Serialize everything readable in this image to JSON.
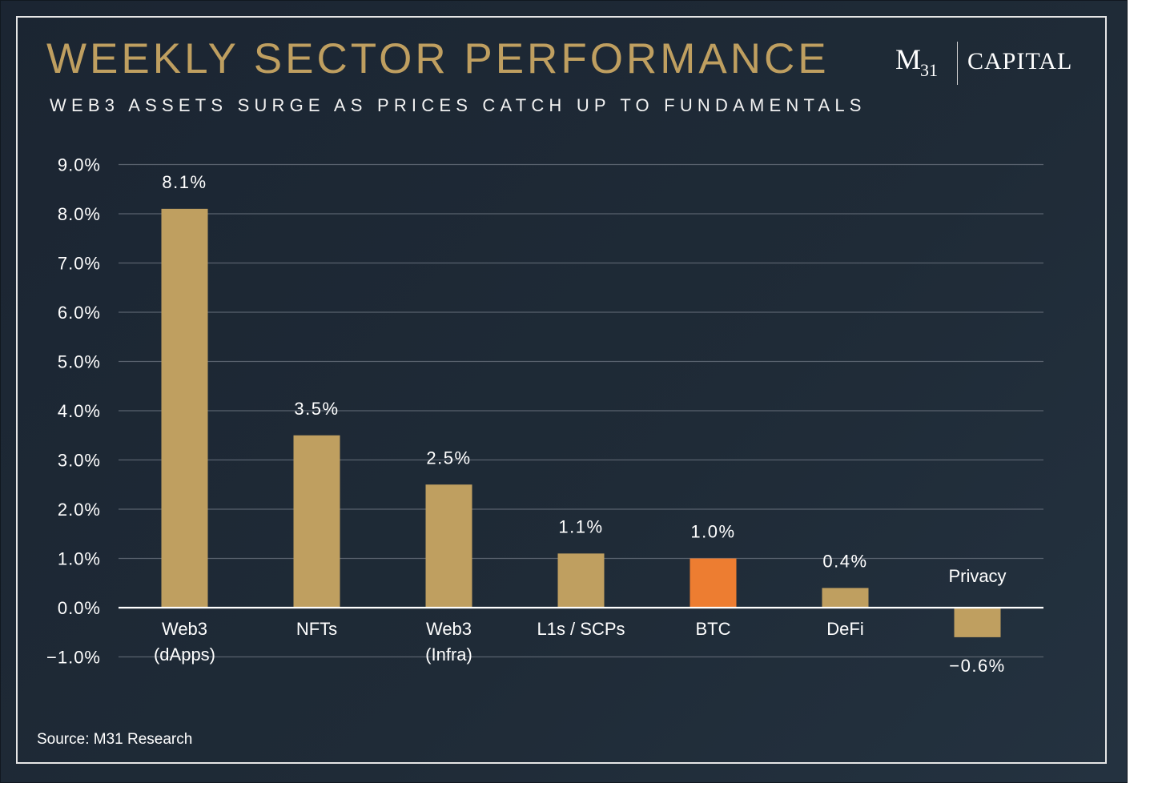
{
  "header": {
    "title": "WEEKLY SECTOR PERFORMANCE",
    "subtitle": "WEB3 ASSETS SURGE AS PRICES CATCH UP TO FUNDAMENTALS"
  },
  "logo": {
    "main": "M",
    "sub": "31",
    "word": "CAPITAL"
  },
  "footer": {
    "source": "Source: M31 Research"
  },
  "colors": {
    "background": "#1e2a36",
    "title": "#bf9f60",
    "bar": "#bf9f60",
    "highlight_bar": "#ed7d31",
    "gridline": "#59626e",
    "text": "#ffffff"
  },
  "chart_data": {
    "type": "bar",
    "title": "WEEKLY SECTOR PERFORMANCE",
    "subtitle": "WEB3 ASSETS SURGE AS PRICES CATCH UP TO FUNDAMENTALS",
    "categories": [
      [
        "Web3",
        "(dApps)"
      ],
      [
        "NFTs"
      ],
      [
        "Web3",
        "(Infra)"
      ],
      [
        "L1s / SCPs"
      ],
      [
        "BTC"
      ],
      [
        "DeFi"
      ],
      [
        "Privacy"
      ]
    ],
    "values": [
      8.1,
      3.5,
      2.5,
      1.1,
      1.0,
      0.4,
      -0.6
    ],
    "value_labels": [
      "8.1%",
      "3.5%",
      "2.5%",
      "1.1%",
      "1.0%",
      "0.4%",
      "−0.6%"
    ],
    "highlight": "BTC",
    "ylim": [
      -1.0,
      9.0
    ],
    "yticks": [
      -1.0,
      0.0,
      1.0,
      2.0,
      3.0,
      4.0,
      5.0,
      6.0,
      7.0,
      8.0,
      9.0
    ],
    "ytick_labels": [
      "−1.0%",
      "0.0%",
      "1.0%",
      "2.0%",
      "3.0%",
      "4.0%",
      "5.0%",
      "6.0%",
      "7.0%",
      "8.0%",
      "9.0%"
    ],
    "xlabel": "",
    "ylabel": "",
    "grid": true,
    "legend": "none"
  }
}
